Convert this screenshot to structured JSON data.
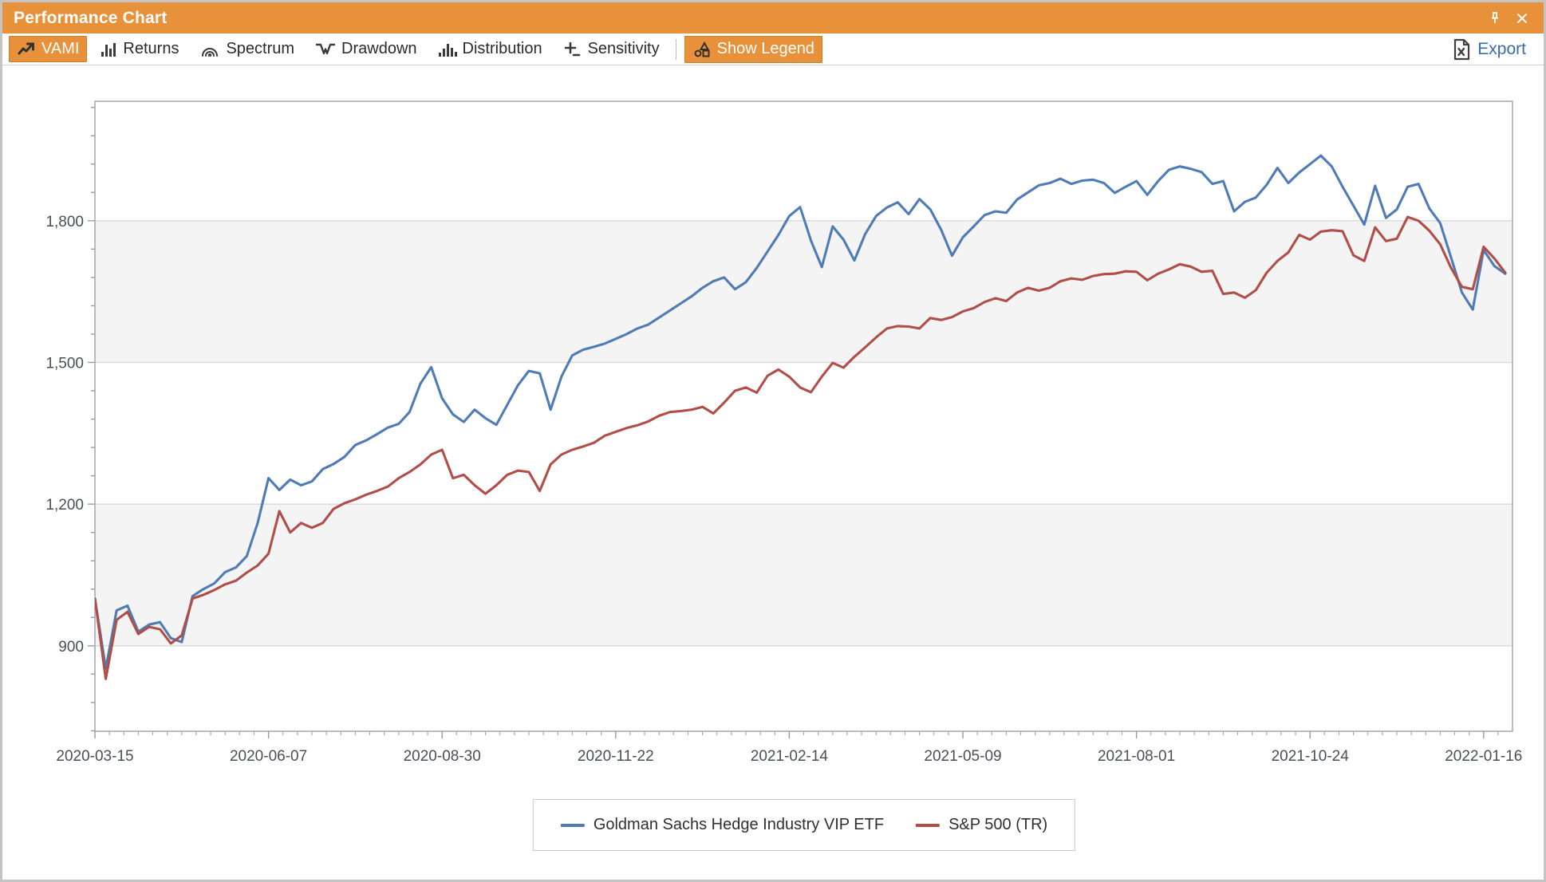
{
  "window": {
    "title": "Performance Chart"
  },
  "toolbar": {
    "items": [
      {
        "label": "VAMI",
        "icon": "trend-line-icon",
        "active": true
      },
      {
        "label": "Returns",
        "icon": "bar-chart-icon",
        "active": false
      },
      {
        "label": "Spectrum",
        "icon": "spectrum-arcs-icon",
        "active": false
      },
      {
        "label": "Drawdown",
        "icon": "drawdown-icon",
        "active": false
      },
      {
        "label": "Distribution",
        "icon": "histogram-icon",
        "active": false
      },
      {
        "label": "Sensitivity",
        "icon": "plus-minus-icon",
        "active": false
      },
      {
        "label": "Show Legend",
        "icon": "shapes-icon",
        "active": true
      }
    ],
    "export_label": "Export",
    "export_icon": "excel-file-icon"
  },
  "titlebar_icons": {
    "pin": "pin-icon",
    "close": "close-icon"
  },
  "colors": {
    "titlebar_orange": "#E7923A",
    "series_blue": "#4F7CB4",
    "series_red": "#B04E48",
    "gridline": "#D9D9D9",
    "band_gray": "#F4F4F5",
    "axis_spine": "#ABABAB",
    "axis_text": "#4A4F57",
    "export_text": "#3A6BA5"
  },
  "chart_data": {
    "type": "line",
    "title": "",
    "xlabel": "",
    "ylabel": "",
    "x_tick_labels": [
      "2020-03-15",
      "2020-06-07",
      "2020-08-30",
      "2020-11-22",
      "2021-02-14",
      "2021-05-09",
      "2021-08-01",
      "2021-10-24",
      "2022-01-16"
    ],
    "x_ticks_every": 16,
    "x_minor_weeks_per_major": 12,
    "y_major_ticks": [
      900,
      1200,
      1500,
      1800
    ],
    "y_minor_step": 60,
    "ylim": [
      719,
      2053
    ],
    "grid": true,
    "alternating_bands": [
      [
        900,
        1200
      ],
      [
        1500,
        1800
      ]
    ],
    "legend_position": "bottom",
    "series": [
      {
        "name": "Goldman Sachs Hedge Industry VIP ETF",
        "color": "#4F7CB4",
        "values": [
          1000,
          852,
          975,
          985,
          930,
          945,
          950,
          916,
          908,
          1005,
          1020,
          1032,
          1056,
          1066,
          1090,
          1160,
          1255,
          1230,
          1252,
          1240,
          1248,
          1274,
          1285,
          1300,
          1325,
          1335,
          1348,
          1362,
          1370,
          1395,
          1455,
          1490,
          1424,
          1390,
          1374,
          1400,
          1382,
          1368,
          1410,
          1452,
          1482,
          1477,
          1400,
          1470,
          1515,
          1527,
          1533,
          1540,
          1550,
          1560,
          1572,
          1580,
          1595,
          1610,
          1625,
          1640,
          1658,
          1672,
          1680,
          1655,
          1670,
          1700,
          1735,
          1770,
          1810,
          1829,
          1758,
          1702,
          1788,
          1760,
          1716,
          1772,
          1810,
          1828,
          1839,
          1814,
          1846,
          1824,
          1781,
          1726,
          1765,
          1788,
          1812,
          1820,
          1817,
          1845,
          1860,
          1875,
          1880,
          1889,
          1878,
          1885,
          1887,
          1880,
          1859,
          1872,
          1884,
          1855,
          1884,
          1908,
          1915,
          1910,
          1903,
          1878,
          1884,
          1820,
          1840,
          1849,
          1876,
          1912,
          1880,
          1902,
          1920,
          1938,
          1915,
          1872,
          1832,
          1792,
          1874,
          1806,
          1824,
          1872,
          1878,
          1826,
          1795,
          1722,
          1648,
          1612,
          1738,
          1704,
          1688
        ]
      },
      {
        "name": "S&P 500 (TR)",
        "color": "#B04E48",
        "values": [
          1000,
          830,
          955,
          972,
          925,
          940,
          935,
          905,
          922,
          1000,
          1008,
          1018,
          1030,
          1038,
          1055,
          1070,
          1095,
          1185,
          1140,
          1160,
          1150,
          1160,
          1190,
          1202,
          1210,
          1220,
          1228,
          1237,
          1255,
          1268,
          1284,
          1305,
          1315,
          1255,
          1262,
          1240,
          1222,
          1240,
          1262,
          1271,
          1268,
          1228,
          1284,
          1305,
          1315,
          1322,
          1330,
          1345,
          1353,
          1361,
          1367,
          1375,
          1387,
          1395,
          1397,
          1400,
          1406,
          1392,
          1415,
          1440,
          1447,
          1436,
          1472,
          1485,
          1470,
          1447,
          1437,
          1470,
          1499,
          1489,
          1512,
          1532,
          1553,
          1572,
          1577,
          1576,
          1572,
          1594,
          1590,
          1596,
          1608,
          1615,
          1628,
          1636,
          1630,
          1648,
          1658,
          1652,
          1658,
          1672,
          1678,
          1675,
          1683,
          1687,
          1688,
          1693,
          1692,
          1674,
          1688,
          1697,
          1708,
          1703,
          1692,
          1694,
          1645,
          1648,
          1637,
          1653,
          1690,
          1715,
          1733,
          1770,
          1760,
          1777,
          1780,
          1778,
          1727,
          1715,
          1786,
          1757,
          1762,
          1808,
          1800,
          1779,
          1750,
          1700,
          1660,
          1655,
          1745,
          1720,
          1690
        ]
      }
    ]
  }
}
